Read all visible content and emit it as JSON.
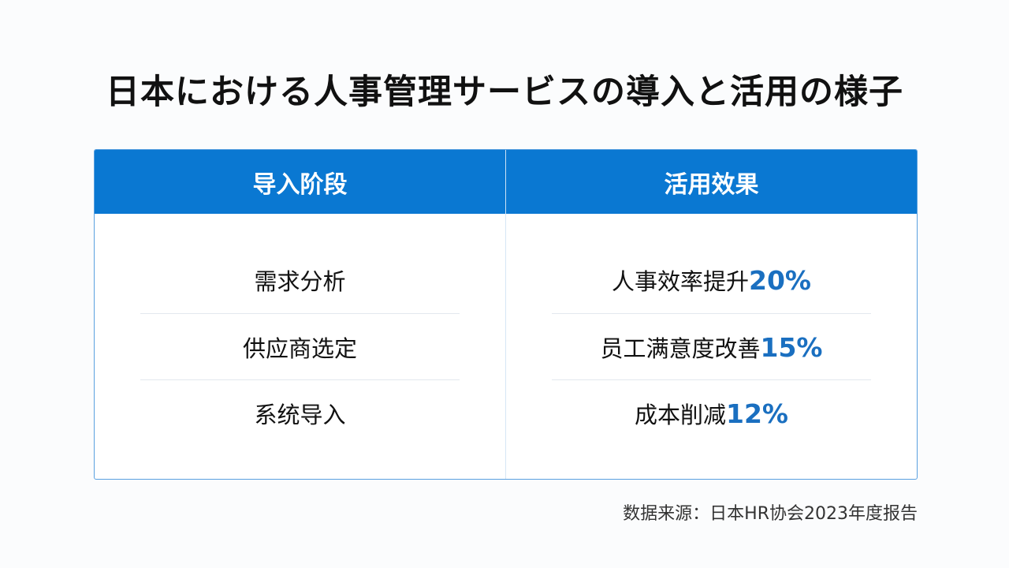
{
  "title": "日本における人事管理サービスの導入と活用の様子",
  "table": {
    "headers": [
      "导入阶段",
      "活用效果"
    ],
    "stages": [
      "需求分析",
      "供应商选定",
      "系统导入"
    ],
    "effects": [
      {
        "label": "人事效率提升",
        "value": "20%"
      },
      {
        "label": "员工满意度改善",
        "value": "15%"
      },
      {
        "label": "成本削减",
        "value": "12%"
      }
    ]
  },
  "source": "数据来源：日本HR协会2023年度报告",
  "colors": {
    "header": "#0a78d2",
    "accent": "#1a6fc0"
  }
}
